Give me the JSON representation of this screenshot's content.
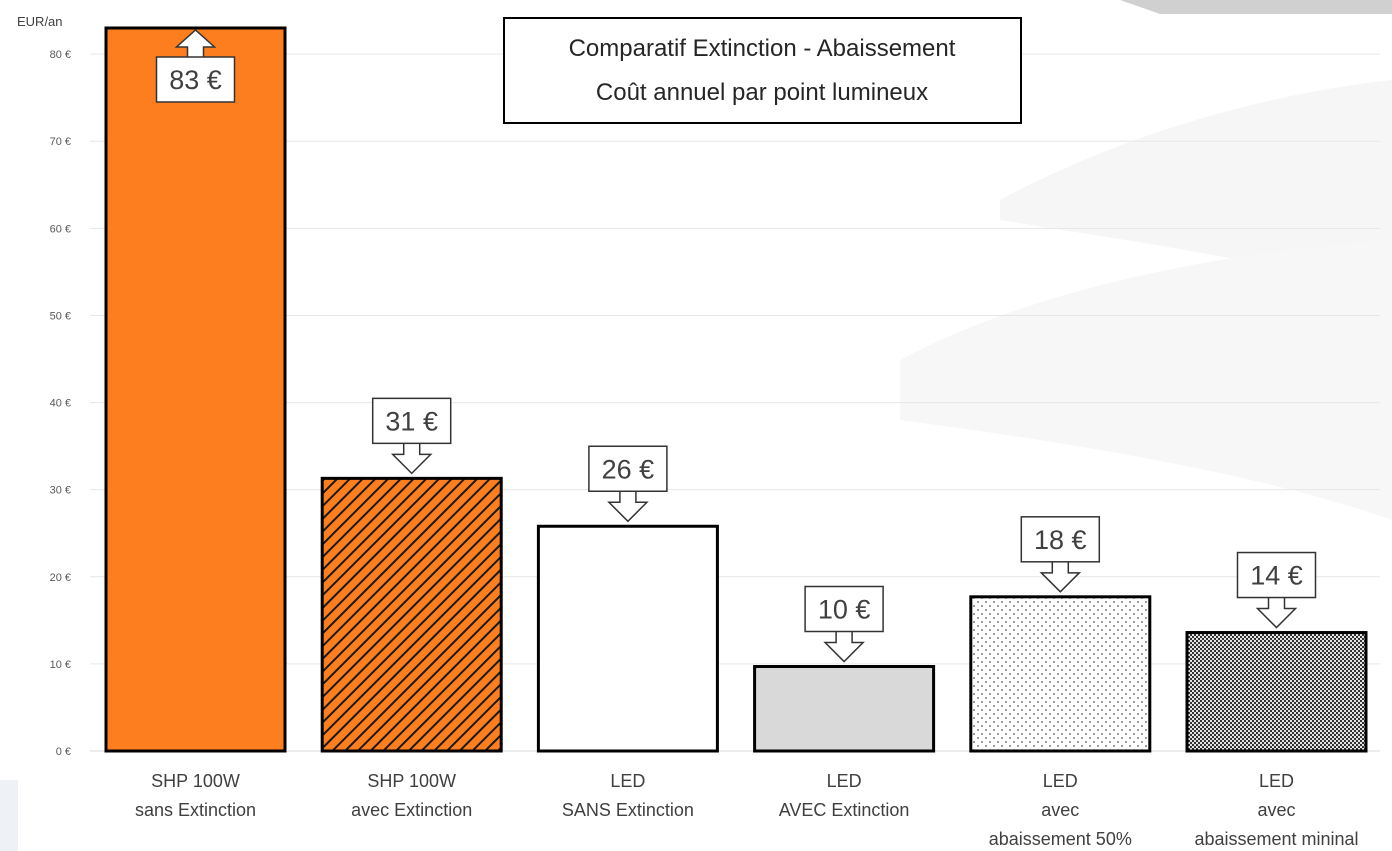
{
  "chart_data": {
    "type": "bar",
    "title_lines": [
      "Comparatif Extinction - Abaissement",
      "Coût annuel par point lumineux"
    ],
    "ylabel": "EUR/an",
    "xlabel": "",
    "ylim": [
      0,
      83
    ],
    "yticks": [
      0,
      10,
      20,
      30,
      40,
      50,
      60,
      70,
      80
    ],
    "ytick_labels": [
      "0 €",
      "10 €",
      "20 €",
      "30 €",
      "40 €",
      "50 €",
      "60 €",
      "70 €",
      "80 €"
    ],
    "grid": true,
    "categories": [
      [
        "SHP 100W",
        "sans Extinction"
      ],
      [
        "SHP 100W",
        "avec Extinction"
      ],
      [
        "LED",
        "SANS Extinction"
      ],
      [
        "LED",
        "AVEC Extinction"
      ],
      [
        "LED",
        "avec",
        "abaissement 50%"
      ],
      [
        "LED",
        "avec",
        "abaissement mininal"
      ]
    ],
    "values": [
      83,
      31.3,
      25.8,
      9.7,
      17.7,
      13.6
    ],
    "value_labels": [
      "83 €",
      "31 €",
      "26 €",
      "10 €",
      "18 €",
      "14 €"
    ],
    "bar_styles": [
      "solid-orange",
      "hatched-orange",
      "white",
      "light-gray",
      "sparse-dots",
      "dense-dots"
    ],
    "colors": {
      "orange": "#fd7e1f",
      "hatch_dark": "#1a1a1a",
      "light_gray": "#d9d9d9",
      "grid": "#e6e6e6",
      "border": "#000000"
    }
  }
}
